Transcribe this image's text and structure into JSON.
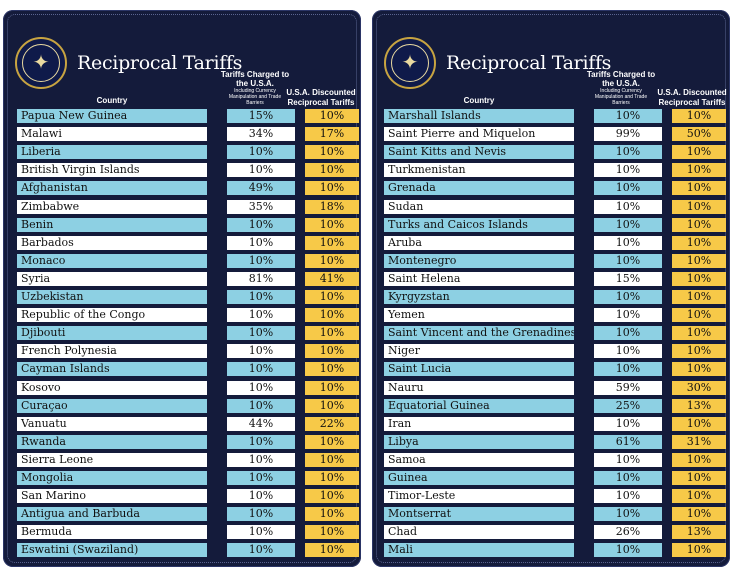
{
  "title": "Reciprocal Tariffs",
  "headers": {
    "country": "Country",
    "charged_main": "Tariffs Charged to the U.S.A.",
    "charged_sub": "Including Currency Manipulation and Trade Barriers",
    "discounted": "U.S.A. Discounted Reciprocal Tariffs"
  },
  "colors": {
    "panel": "#141b3b",
    "blue_row": "#8dd0e3",
    "white_row": "#ffffff",
    "discount": "#f7c948"
  },
  "seal_icon": "presidential-seal-icon",
  "left_rows": [
    {
      "country": "Papua New Guinea",
      "charged": "15%",
      "discounted": "10%"
    },
    {
      "country": "Malawi",
      "charged": "34%",
      "discounted": "17%"
    },
    {
      "country": "Liberia",
      "charged": "10%",
      "discounted": "10%"
    },
    {
      "country": "British Virgin Islands",
      "charged": "10%",
      "discounted": "10%"
    },
    {
      "country": "Afghanistan",
      "charged": "49%",
      "discounted": "10%"
    },
    {
      "country": "Zimbabwe",
      "charged": "35%",
      "discounted": "18%"
    },
    {
      "country": "Benin",
      "charged": "10%",
      "discounted": "10%"
    },
    {
      "country": "Barbados",
      "charged": "10%",
      "discounted": "10%"
    },
    {
      "country": "Monaco",
      "charged": "10%",
      "discounted": "10%"
    },
    {
      "country": "Syria",
      "charged": "81%",
      "discounted": "41%"
    },
    {
      "country": "Uzbekistan",
      "charged": "10%",
      "discounted": "10%"
    },
    {
      "country": "Republic of the Congo",
      "charged": "10%",
      "discounted": "10%"
    },
    {
      "country": "Djibouti",
      "charged": "10%",
      "discounted": "10%"
    },
    {
      "country": "French Polynesia",
      "charged": "10%",
      "discounted": "10%"
    },
    {
      "country": "Cayman Islands",
      "charged": "10%",
      "discounted": "10%"
    },
    {
      "country": "Kosovo",
      "charged": "10%",
      "discounted": "10%"
    },
    {
      "country": "Curaçao",
      "charged": "10%",
      "discounted": "10%"
    },
    {
      "country": "Vanuatu",
      "charged": "44%",
      "discounted": "22%"
    },
    {
      "country": "Rwanda",
      "charged": "10%",
      "discounted": "10%"
    },
    {
      "country": "Sierra Leone",
      "charged": "10%",
      "discounted": "10%"
    },
    {
      "country": "Mongolia",
      "charged": "10%",
      "discounted": "10%"
    },
    {
      "country": "San Marino",
      "charged": "10%",
      "discounted": "10%"
    },
    {
      "country": "Antigua and Barbuda",
      "charged": "10%",
      "discounted": "10%"
    },
    {
      "country": "Bermuda",
      "charged": "10%",
      "discounted": "10%"
    },
    {
      "country": "Eswatini (Swaziland)",
      "charged": "10%",
      "discounted": "10%"
    }
  ],
  "right_rows": [
    {
      "country": "Marshall Islands",
      "charged": "10%",
      "discounted": "10%"
    },
    {
      "country": "Saint Pierre and Miquelon",
      "charged": "99%",
      "discounted": "50%"
    },
    {
      "country": "Saint Kitts and Nevis",
      "charged": "10%",
      "discounted": "10%"
    },
    {
      "country": "Turkmenistan",
      "charged": "10%",
      "discounted": "10%"
    },
    {
      "country": "Grenada",
      "charged": "10%",
      "discounted": "10%"
    },
    {
      "country": "Sudan",
      "charged": "10%",
      "discounted": "10%"
    },
    {
      "country": "Turks and Caicos Islands",
      "charged": "10%",
      "discounted": "10%"
    },
    {
      "country": "Aruba",
      "charged": "10%",
      "discounted": "10%"
    },
    {
      "country": "Montenegro",
      "charged": "10%",
      "discounted": "10%"
    },
    {
      "country": "Saint Helena",
      "charged": "15%",
      "discounted": "10%"
    },
    {
      "country": "Kyrgyzstan",
      "charged": "10%",
      "discounted": "10%"
    },
    {
      "country": "Yemen",
      "charged": "10%",
      "discounted": "10%"
    },
    {
      "country": "Saint Vincent and the Grenadines",
      "charged": "10%",
      "discounted": "10%"
    },
    {
      "country": "Niger",
      "charged": "10%",
      "discounted": "10%"
    },
    {
      "country": "Saint Lucia",
      "charged": "10%",
      "discounted": "10%"
    },
    {
      "country": "Nauru",
      "charged": "59%",
      "discounted": "30%"
    },
    {
      "country": "Equatorial Guinea",
      "charged": "25%",
      "discounted": "13%"
    },
    {
      "country": "Iran",
      "charged": "10%",
      "discounted": "10%"
    },
    {
      "country": "Libya",
      "charged": "61%",
      "discounted": "31%"
    },
    {
      "country": "Samoa",
      "charged": "10%",
      "discounted": "10%"
    },
    {
      "country": "Guinea",
      "charged": "10%",
      "discounted": "10%"
    },
    {
      "country": "Timor-Leste",
      "charged": "10%",
      "discounted": "10%"
    },
    {
      "country": "Montserrat",
      "charged": "10%",
      "discounted": "10%"
    },
    {
      "country": "Chad",
      "charged": "26%",
      "discounted": "13%"
    },
    {
      "country": "Mali",
      "charged": "10%",
      "discounted": "10%"
    }
  ]
}
